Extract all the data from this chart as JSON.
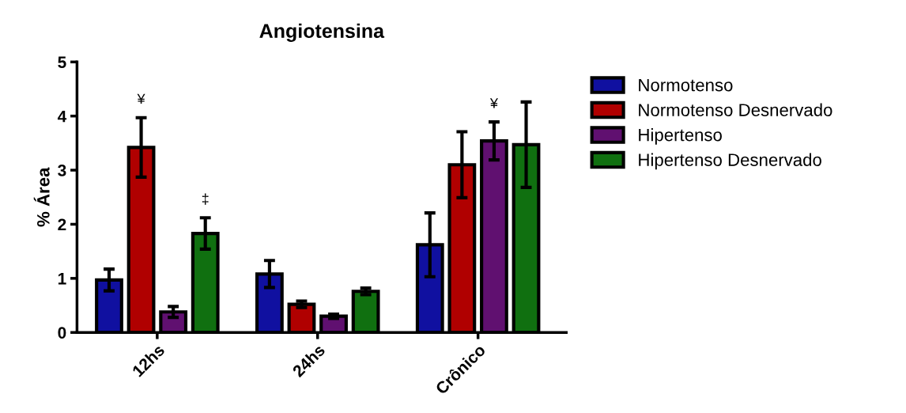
{
  "chart_data": {
    "type": "bar",
    "title": "Angiotensina",
    "ylabel": "% Área",
    "categories": [
      "12hs",
      "24hs",
      "Crônico"
    ],
    "series": [
      {
        "name": "Normotenso",
        "color": "#1010a0",
        "values": [
          0.97,
          1.08,
          1.62
        ],
        "errors": [
          0.2,
          0.25,
          0.59
        ]
      },
      {
        "name": "Normotenso Desnervado",
        "color": "#b00000",
        "values": [
          3.42,
          0.52,
          3.1
        ],
        "errors": [
          0.55,
          0.06,
          0.61
        ],
        "value_labels": [
          "¥",
          null,
          null
        ]
      },
      {
        "name": "Hipertenso",
        "color": "#601070",
        "values": [
          0.38,
          0.3,
          3.54
        ],
        "errors": [
          0.1,
          0.04,
          0.35
        ],
        "value_labels": [
          null,
          null,
          "¥"
        ]
      },
      {
        "name": "Hipertenso Desnervado",
        "color": "#107010",
        "values": [
          1.83,
          0.76,
          3.47
        ],
        "errors": [
          0.29,
          0.06,
          0.79
        ],
        "value_labels": [
          "‡",
          null,
          null
        ]
      }
    ],
    "ylim": [
      0,
      5
    ],
    "yticks": [
      0,
      1,
      2,
      3,
      4,
      5
    ],
    "grid": false,
    "legend": "right"
  }
}
